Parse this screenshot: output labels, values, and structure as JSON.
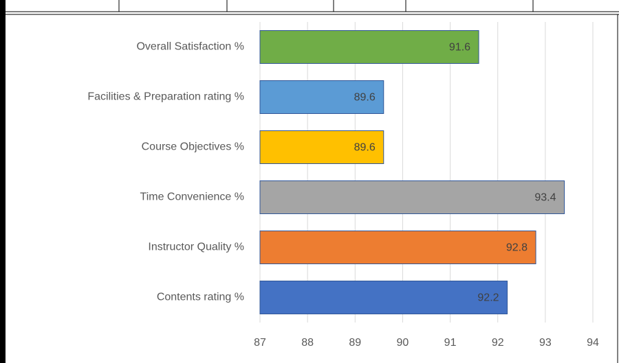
{
  "chart_data": {
    "type": "bar",
    "orientation": "horizontal",
    "categories": [
      "Overall Satisfaction %",
      "Facilities & Preparation  rating %",
      "Course Objectives %",
      "Time Convenience  %",
      "Instructor Quality %",
      "Contents rating %"
    ],
    "values": [
      91.6,
      89.6,
      89.6,
      93.4,
      92.8,
      92.2
    ],
    "colors": [
      "#70ad47",
      "#5b9bd5",
      "#ffc000",
      "#a5a5a5",
      "#ed7d31",
      "#4472c4"
    ],
    "xlim": [
      87,
      94
    ],
    "xticks": [
      87,
      88,
      89,
      90,
      91,
      92,
      93,
      94
    ],
    "grid": true
  }
}
